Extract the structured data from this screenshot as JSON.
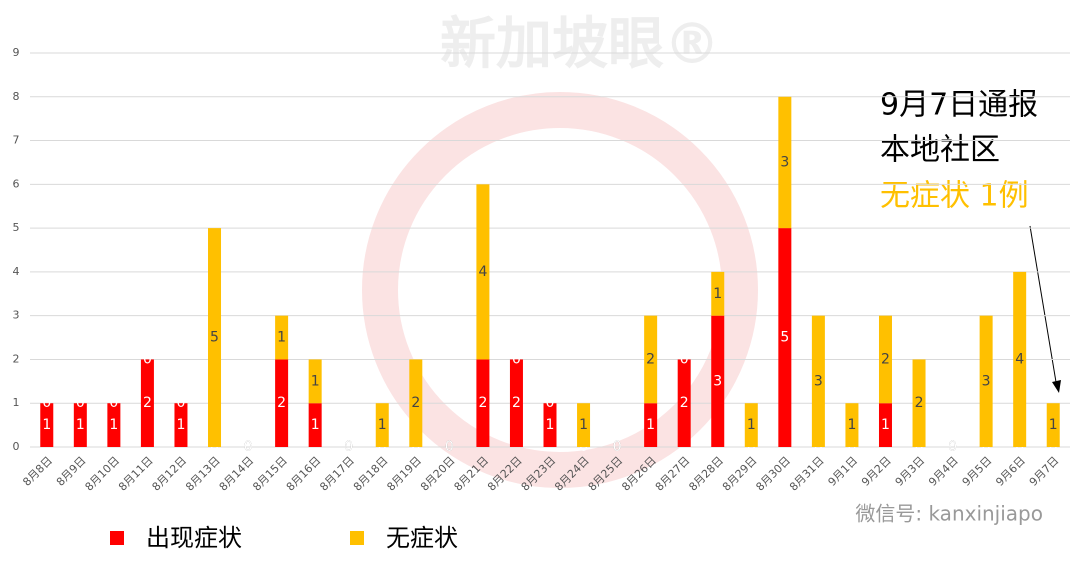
{
  "chart_data": {
    "type": "stacked-bar",
    "categories": [
      "8月8日",
      "8月9日",
      "8月10日",
      "8月11日",
      "8月12日",
      "8月13日",
      "8月14日",
      "8月15日",
      "8月16日",
      "8月17日",
      "8月18日",
      "8月19日",
      "8月20日",
      "8月21日",
      "8月22日",
      "8月23日",
      "8月24日",
      "8月25日",
      "8月26日",
      "8月27日",
      "8月28日",
      "8月29日",
      "8月30日",
      "8月31日",
      "9月1日",
      "9月2日",
      "9月3日",
      "9月4日",
      "9月5日",
      "9月6日",
      "9月7日"
    ],
    "series": [
      {
        "name": "出现症状",
        "color": "#ff0000",
        "values": [
          1,
          1,
          1,
          2,
          1,
          0,
          0,
          2,
          1,
          0,
          0,
          0,
          0,
          2,
          2,
          1,
          0,
          0,
          1,
          2,
          3,
          0,
          5,
          0,
          0,
          1,
          0,
          0,
          0,
          0,
          0
        ]
      },
      {
        "name": "无症状",
        "color": "#ffc000",
        "values": [
          0,
          0,
          0,
          0,
          0,
          5,
          0,
          1,
          1,
          0,
          1,
          2,
          0,
          4,
          0,
          0,
          1,
          0,
          2,
          0,
          1,
          1,
          3,
          3,
          1,
          2,
          2,
          0,
          3,
          4,
          1
        ]
      }
    ],
    "ylim": [
      0,
      9
    ],
    "yticks": [
      0,
      1,
      2,
      3,
      4,
      5,
      6,
      7,
      8,
      9
    ],
    "grid": true,
    "annotation": {
      "lines": [
        "9月7日通报",
        "本地社区",
        "无症状 1例"
      ]
    },
    "watermark": "新加坡眼®",
    "footer": "微信号: kanxinjiapo"
  }
}
